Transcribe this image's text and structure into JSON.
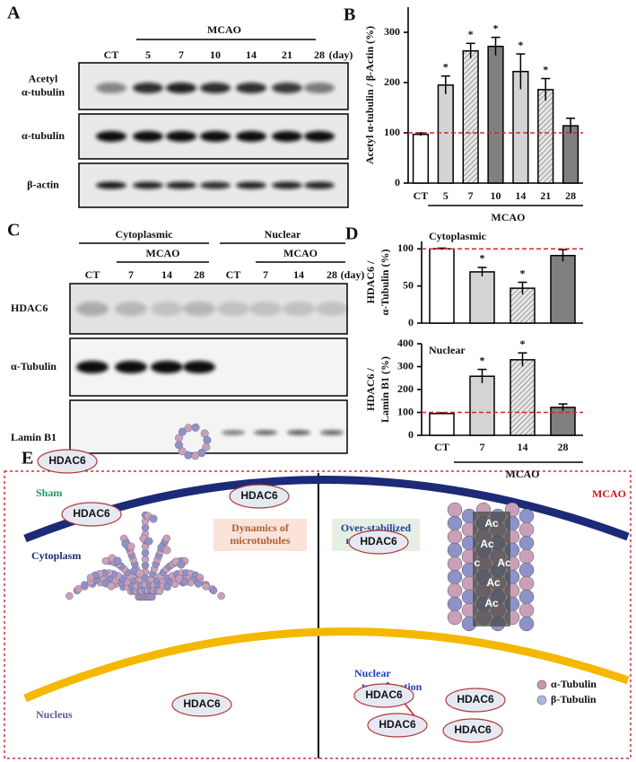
{
  "panel_a": {
    "label": "A",
    "group_label": "MCAO",
    "lanes": [
      "CT",
      "5",
      "7",
      "10",
      "14",
      "21",
      "28"
    ],
    "unit": "(day)",
    "rows": [
      [
        "Acetyl",
        "α-tubulin"
      ],
      [
        "α-tubulin"
      ],
      [
        "β-actin"
      ]
    ]
  },
  "panel_c": {
    "label": "C",
    "unit": "(day)",
    "groups": [
      {
        "name": "Cytoplasmic",
        "sub_label": "MCAO",
        "lanes": [
          "CT",
          "7",
          "14",
          "28"
        ]
      },
      {
        "name": "Nuclear",
        "sub_label": "MCAO",
        "lanes": [
          "CT",
          "7",
          "14",
          "28"
        ]
      }
    ],
    "rows": [
      "HDAC6",
      "α-Tubulin",
      "Lamin B1"
    ]
  },
  "chart_data": [
    {
      "type": "bar",
      "panel_label": "B",
      "ylabel": "Acetyl α-tubulin / β-Actin (%)",
      "categories": [
        "CT",
        "5",
        "7",
        "10",
        "14",
        "21",
        "28"
      ],
      "group_label": "MCAO",
      "values": [
        97,
        195,
        263,
        272,
        222,
        186,
        114
      ],
      "errors": [
        3,
        18,
        15,
        18,
        35,
        22,
        15
      ],
      "annotations": [
        null,
        "*",
        "*",
        "*",
        "*",
        "*",
        null
      ],
      "colors": [
        "#ffffff",
        "#d4d4d4",
        "#e6e6e6",
        "#808080",
        "#d4d4d4",
        "#e6e6e6",
        "#808080"
      ],
      "hatched": [
        false,
        false,
        true,
        false,
        false,
        true,
        false
      ],
      "reference_line": 100,
      "reference_color": "#d62728",
      "ylim": [
        0,
        350
      ],
      "yticks": [
        0,
        100,
        200,
        300
      ]
    },
    {
      "type": "bar",
      "panel_label": "D",
      "inset_label": "Cytoplasmic",
      "ylabel": [
        "HDAC6 /",
        "α-Tubulin (%)"
      ],
      "values": [
        100,
        69,
        47,
        91
      ],
      "errors": [
        1,
        6,
        8,
        8
      ],
      "annotations": [
        null,
        "*",
        "*",
        null
      ],
      "colors": [
        "#ffffff",
        "#d4d4d4",
        "#e6e6e6",
        "#808080"
      ],
      "hatched": [
        false,
        false,
        true,
        false
      ],
      "reference_line": 100,
      "reference_color": "#d62728",
      "ylim": [
        0,
        110
      ],
      "yticks": [
        0,
        50,
        100
      ]
    },
    {
      "type": "bar",
      "inset_label": "Nuclear",
      "ylabel": [
        "HDAC6 /",
        "Lamin B1 (%)"
      ],
      "categories": [
        "CT",
        "7",
        "14",
        "28"
      ],
      "group_label": "MCAO",
      "values": [
        95,
        258,
        330,
        122
      ],
      "errors": [
        3,
        30,
        30,
        15
      ],
      "annotations": [
        null,
        "*",
        "*",
        null
      ],
      "colors": [
        "#ffffff",
        "#d4d4d4",
        "#e6e6e6",
        "#808080"
      ],
      "hatched": [
        false,
        false,
        true,
        false
      ],
      "reference_line": 100,
      "reference_color": "#d62728",
      "ylim": [
        0,
        400
      ],
      "yticks": [
        0,
        100,
        200,
        300,
        400
      ]
    }
  ],
  "panel_e": {
    "label": "E",
    "left_title": "Sham",
    "right_title": "MCAO",
    "cytoplasm": "Cytoplasm",
    "nucleus": "Nucleus",
    "left_box": [
      "Dynamics of",
      "microtubules"
    ],
    "right_box": [
      "Over-stabilized",
      "microtubules"
    ],
    "arrow_label": [
      "Nuclear",
      "translocation"
    ],
    "hdac6": [
      "HDAC6",
      "HDAC6",
      "HDAC6",
      "HDAC6",
      "HDAC6",
      "HDAC6",
      "HDAC6",
      "HDAC6",
      "HDAC6"
    ],
    "acetyl": [
      "Ac",
      "Ac",
      "c",
      "Ac",
      "Ac",
      "Ac"
    ],
    "legend": [
      "α-Tubulin",
      "β-Tubulin"
    ]
  }
}
